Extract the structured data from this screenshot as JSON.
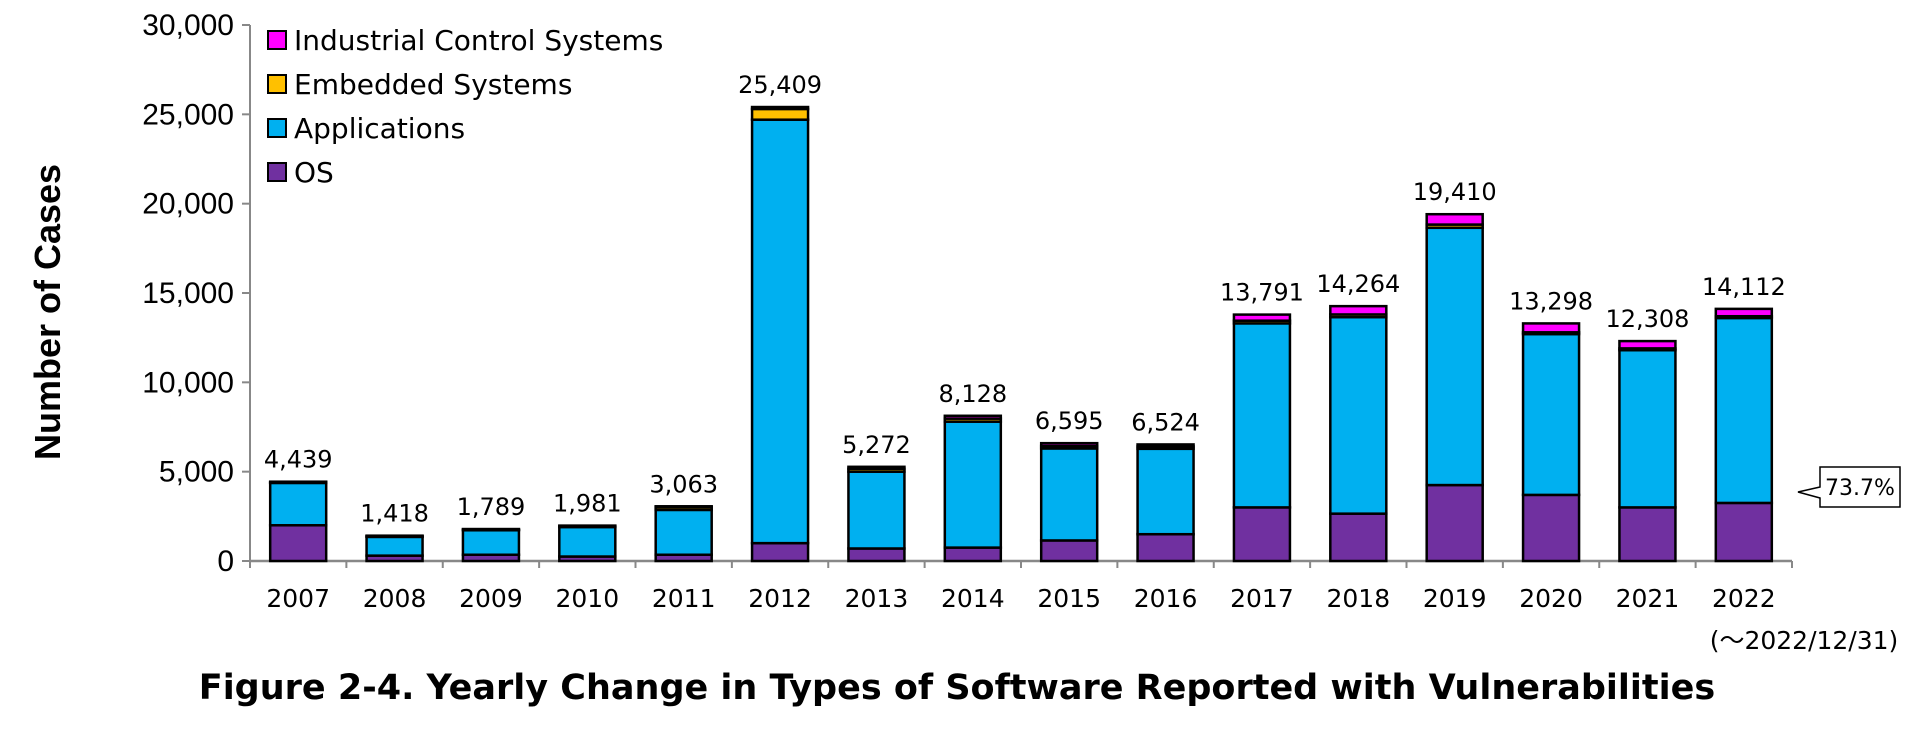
{
  "caption": "Figure 2-4. Yearly Change in Types of Software Reported with Vulnerabilities",
  "chart_data": {
    "type": "bar",
    "stacked": true,
    "ylabel": "Number of Cases",
    "xlabel": "",
    "ylim": [
      0,
      30000
    ],
    "yticks": [
      0,
      5000,
      10000,
      15000,
      20000,
      25000,
      30000
    ],
    "ytick_labels": [
      "0",
      "5,000",
      "10,000",
      "15,000",
      "20,000",
      "25,000",
      "30,000"
    ],
    "grid": false,
    "legend_position": "top-left",
    "categories": [
      "2007",
      "2008",
      "2009",
      "2010",
      "2011",
      "2012",
      "2013",
      "2014",
      "2015",
      "2016",
      "2017",
      "2018",
      "2019",
      "2020",
      "2021",
      "2022"
    ],
    "category_note": "(～2022/12/31)",
    "totals": [
      4439,
      1418,
      1789,
      1981,
      3063,
      25409,
      5272,
      8128,
      6595,
      6524,
      13791,
      14264,
      19410,
      13298,
      12308,
      14112
    ],
    "total_labels": [
      "4,439",
      "1,418",
      "1,789",
      "1,981",
      "3,063",
      "25,409",
      "5,272",
      "8,128",
      "6,595",
      "6,524",
      "13,791",
      "14,264",
      "19,410",
      "13,298",
      "12,308",
      "14,112"
    ],
    "series": [
      {
        "name": "OS",
        "color": "#7030A0",
        "values": [
          2000,
          300,
          350,
          250,
          350,
          1000,
          700,
          750,
          1150,
          1500,
          3000,
          2650,
          4250,
          3700,
          3000,
          3250
        ]
      },
      {
        "name": "Applications",
        "color": "#00B0F0",
        "values": [
          2370,
          1050,
          1370,
          1650,
          2510,
          23700,
          4300,
          7050,
          5150,
          4780,
          10300,
          11000,
          14400,
          9000,
          8800,
          10350
        ]
      },
      {
        "name": "Embedded Systems",
        "color": "#FFC000",
        "values": [
          30,
          30,
          30,
          30,
          150,
          600,
          160,
          170,
          140,
          130,
          150,
          150,
          180,
          100,
          100,
          100
        ]
      },
      {
        "name": "Industrial Control Systems",
        "color": "#FF00FF",
        "values": [
          39,
          38,
          39,
          51,
          53,
          109,
          112,
          158,
          155,
          114,
          341,
          464,
          580,
          498,
          408,
          412
        ]
      }
    ],
    "legend_order": [
      "Industrial Control Systems",
      "Embedded Systems",
      "Applications",
      "OS"
    ],
    "annotation": {
      "text": "73.7%",
      "category": "2022"
    }
  }
}
